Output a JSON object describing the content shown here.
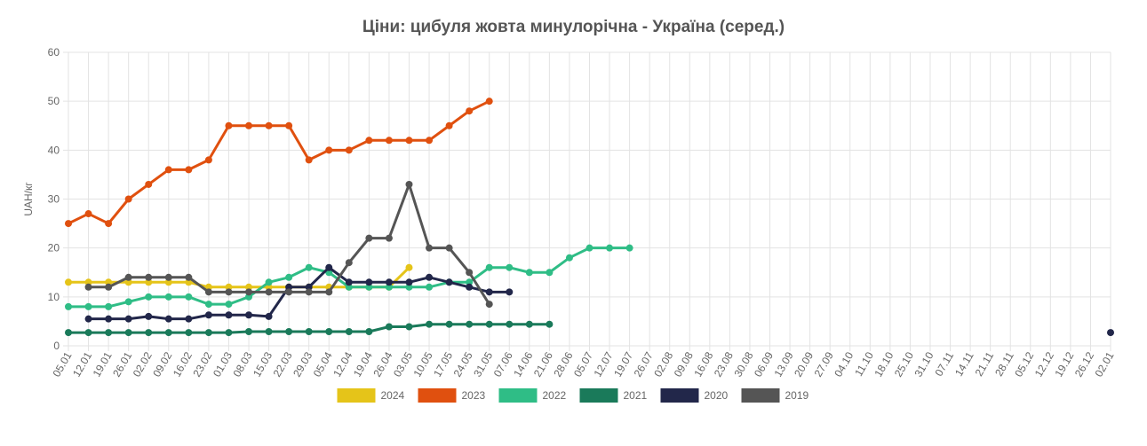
{
  "chart_data": {
    "type": "line",
    "title": "Ціни: цибуля жовта минулорічна - Україна (серед.)",
    "xlabel": "",
    "ylabel": "UAH/кг",
    "ylim": [
      0,
      60
    ],
    "yticks": [
      0,
      10,
      20,
      30,
      40,
      50,
      60
    ],
    "grid": true,
    "legend_position": "bottom",
    "categories": [
      "05.01",
      "12.01",
      "19.01",
      "26.01",
      "02.02",
      "09.02",
      "16.02",
      "23.02",
      "01.03",
      "08.03",
      "15.03",
      "22.03",
      "29.03",
      "05.04",
      "12.04",
      "19.04",
      "26.04",
      "03.05",
      "10.05",
      "17.05",
      "24.05",
      "31.05",
      "07.06",
      "14.06",
      "21.06",
      "28.06",
      "05.07",
      "12.07",
      "19.07",
      "26.07",
      "02.08",
      "09.08",
      "16.08",
      "23.08",
      "30.08",
      "06.09",
      "13.09",
      "20.09",
      "27.09",
      "04.10",
      "11.10",
      "18.10",
      "25.10",
      "31.10",
      "07.11",
      "14.11",
      "21.11",
      "28.11",
      "05.12",
      "12.12",
      "19.12",
      "26.12",
      "02.01"
    ],
    "series": [
      {
        "name": "2024",
        "color": "#e5c419",
        "values": [
          13,
          13,
          13,
          13,
          13,
          13,
          13,
          12,
          12,
          12,
          12,
          12,
          12,
          12,
          12,
          12,
          12,
          16,
          null,
          null,
          null,
          null,
          null,
          null,
          null,
          null,
          null,
          null,
          null,
          null,
          null,
          null,
          null,
          null,
          null,
          null,
          null,
          null,
          null,
          null,
          null,
          null,
          null,
          null,
          null,
          null,
          null,
          null,
          null,
          null,
          null,
          null,
          null
        ]
      },
      {
        "name": "2023",
        "color": "#e0500f",
        "values": [
          25,
          27,
          25,
          30,
          33,
          36,
          36,
          38,
          45,
          45,
          45,
          45,
          38,
          40,
          40,
          42,
          42,
          42,
          42,
          45,
          48,
          50,
          null,
          null,
          null,
          null,
          null,
          null,
          null,
          null,
          null,
          null,
          null,
          null,
          null,
          null,
          null,
          null,
          null,
          null,
          null,
          null,
          null,
          null,
          null,
          null,
          null,
          null,
          null,
          null,
          null,
          null,
          null
        ]
      },
      {
        "name": "2022",
        "color": "#2fbd86",
        "values": [
          8,
          8,
          8,
          9,
          10,
          10,
          10,
          8.5,
          8.5,
          10,
          13,
          14,
          16,
          15,
          12,
          12,
          12,
          12,
          12,
          13,
          13,
          16,
          16,
          15,
          15,
          18,
          20,
          20,
          20,
          null,
          null,
          null,
          null,
          null,
          null,
          null,
          null,
          null,
          null,
          null,
          null,
          null,
          null,
          null,
          null,
          null,
          null,
          null,
          null,
          null,
          null,
          null,
          null
        ]
      },
      {
        "name": "2021",
        "color": "#1a7a5a",
        "values": [
          2.7,
          2.7,
          2.7,
          2.7,
          2.7,
          2.7,
          2.7,
          2.7,
          2.7,
          2.9,
          2.9,
          2.9,
          2.9,
          2.9,
          2.9,
          2.9,
          3.9,
          3.9,
          4.4,
          4.4,
          4.4,
          4.4,
          4.4,
          4.4,
          4.4,
          null,
          null,
          null,
          null,
          null,
          null,
          null,
          null,
          null,
          null,
          null,
          null,
          null,
          null,
          null,
          null,
          null,
          null,
          null,
          null,
          null,
          null,
          null,
          null,
          null,
          null,
          null,
          null
        ]
      },
      {
        "name": "2020",
        "color": "#22274a",
        "values": [
          null,
          5.5,
          5.5,
          5.5,
          6,
          5.5,
          5.5,
          6.3,
          6.3,
          6.3,
          6,
          12,
          12,
          16,
          13,
          13,
          13,
          13,
          14,
          13,
          12,
          11,
          11,
          null,
          null,
          null,
          null,
          null,
          null,
          null,
          null,
          null,
          null,
          null,
          null,
          null,
          null,
          null,
          null,
          null,
          null,
          null,
          null,
          null,
          null,
          null,
          null,
          null,
          null,
          null,
          null,
          null,
          2.7
        ]
      },
      {
        "name": "2019",
        "color": "#555555",
        "values": [
          null,
          12,
          12,
          14,
          14,
          14,
          14,
          11,
          11,
          11,
          11,
          11,
          11,
          11,
          17,
          22,
          22,
          33,
          20,
          20,
          15,
          8.5,
          null,
          null,
          null,
          null,
          null,
          null,
          null,
          null,
          null,
          null,
          null,
          null,
          null,
          null,
          null,
          null,
          null,
          null,
          null,
          null,
          null,
          null,
          null,
          null,
          null,
          null,
          null,
          null,
          null,
          null,
          null
        ]
      }
    ]
  }
}
